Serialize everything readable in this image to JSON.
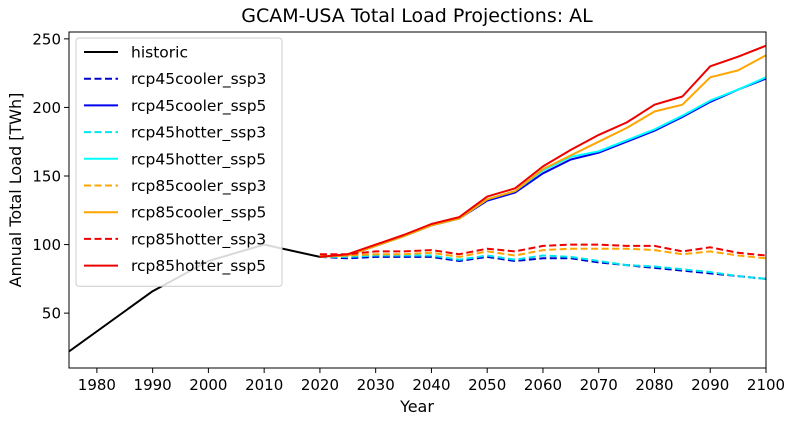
{
  "chart_data": {
    "type": "line",
    "title": "GCAM-USA Total Load Projections: AL",
    "xlabel": "Year",
    "ylabel": "Annual Total Load [TWh]",
    "xlim": [
      1975,
      2100
    ],
    "ylim": [
      10,
      255
    ],
    "x_ticks": [
      1980,
      1990,
      2000,
      2010,
      2020,
      2030,
      2040,
      2050,
      2060,
      2070,
      2080,
      2090,
      2100
    ],
    "y_ticks": [
      50,
      100,
      150,
      200,
      250
    ],
    "grid": false,
    "legend_position": "upper-left",
    "series": [
      {
        "name": "historic",
        "color": "#000000",
        "dash": "solid",
        "x": [
          1975,
          1990,
          2000,
          2010,
          2020
        ],
        "y": [
          22,
          66,
          88,
          100,
          91
        ]
      },
      {
        "name": "rcp45cooler_ssp3",
        "color": "#0000cc",
        "dash": "dashed",
        "x": [
          2020,
          2025,
          2030,
          2035,
          2040,
          2045,
          2050,
          2055,
          2060,
          2065,
          2070,
          2075,
          2080,
          2085,
          2090,
          2095,
          2100
        ],
        "y": [
          91,
          90,
          91,
          91,
          91,
          88,
          91,
          88,
          90,
          90,
          87,
          85,
          83,
          81,
          79,
          77,
          75
        ]
      },
      {
        "name": "rcp45cooler_ssp5",
        "color": "#0000ee",
        "dash": "solid",
        "x": [
          2020,
          2025,
          2030,
          2035,
          2040,
          2045,
          2050,
          2055,
          2060,
          2065,
          2070,
          2075,
          2080,
          2085,
          2090,
          2095,
          2100
        ],
        "y": [
          91,
          92,
          99,
          106,
          114,
          119,
          132,
          138,
          152,
          162,
          167,
          175,
          183,
          193,
          204,
          213,
          221
        ]
      },
      {
        "name": "rcp45hotter_ssp3",
        "color": "#00e5ee",
        "dash": "dashed",
        "x": [
          2020,
          2025,
          2030,
          2035,
          2040,
          2045,
          2050,
          2055,
          2060,
          2065,
          2070,
          2075,
          2080,
          2085,
          2090,
          2095,
          2100
        ],
        "y": [
          91,
          91,
          92,
          92,
          92,
          89,
          92,
          89,
          92,
          91,
          88,
          85,
          84,
          82,
          80,
          77,
          75
        ]
      },
      {
        "name": "rcp45hotter_ssp5",
        "color": "#00ffff",
        "dash": "solid",
        "x": [
          2020,
          2025,
          2030,
          2035,
          2040,
          2045,
          2050,
          2055,
          2060,
          2065,
          2070,
          2075,
          2080,
          2085,
          2090,
          2095,
          2100
        ],
        "y": [
          91,
          92,
          99,
          106,
          114,
          119,
          133,
          139,
          154,
          164,
          168,
          176,
          184,
          194,
          205,
          213,
          222
        ]
      },
      {
        "name": "rcp85cooler_ssp3",
        "color": "#ffa500",
        "dash": "dashed",
        "x": [
          2020,
          2025,
          2030,
          2035,
          2040,
          2045,
          2050,
          2055,
          2060,
          2065,
          2070,
          2075,
          2080,
          2085,
          2090,
          2095,
          2100
        ],
        "y": [
          92,
          92,
          93,
          93,
          94,
          91,
          95,
          92,
          96,
          97,
          97,
          97,
          96,
          93,
          95,
          92,
          90
        ]
      },
      {
        "name": "rcp85cooler_ssp5",
        "color": "#ffa500",
        "dash": "solid",
        "x": [
          2020,
          2025,
          2030,
          2035,
          2040,
          2045,
          2050,
          2055,
          2060,
          2065,
          2070,
          2075,
          2080,
          2085,
          2090,
          2095,
          2100
        ],
        "y": [
          91,
          92,
          99,
          106,
          114,
          119,
          133,
          139,
          155,
          165,
          175,
          185,
          197,
          202,
          222,
          227,
          238
        ]
      },
      {
        "name": "rcp85hotter_ssp3",
        "color": "#ee0000",
        "dash": "dashed",
        "x": [
          2020,
          2025,
          2030,
          2035,
          2040,
          2045,
          2050,
          2055,
          2060,
          2065,
          2070,
          2075,
          2080,
          2085,
          2090,
          2095,
          2100
        ],
        "y": [
          93,
          93,
          95,
          95,
          96,
          93,
          97,
          95,
          99,
          100,
          100,
          99,
          99,
          95,
          98,
          94,
          92
        ]
      },
      {
        "name": "rcp85hotter_ssp5",
        "color": "#ee0000",
        "dash": "solid",
        "x": [
          2020,
          2025,
          2030,
          2035,
          2040,
          2045,
          2050,
          2055,
          2060,
          2065,
          2070,
          2075,
          2080,
          2085,
          2090,
          2095,
          2100
        ],
        "y": [
          91,
          93,
          100,
          107,
          115,
          120,
          135,
          141,
          157,
          169,
          180,
          189,
          202,
          208,
          230,
          237,
          245
        ]
      }
    ]
  }
}
